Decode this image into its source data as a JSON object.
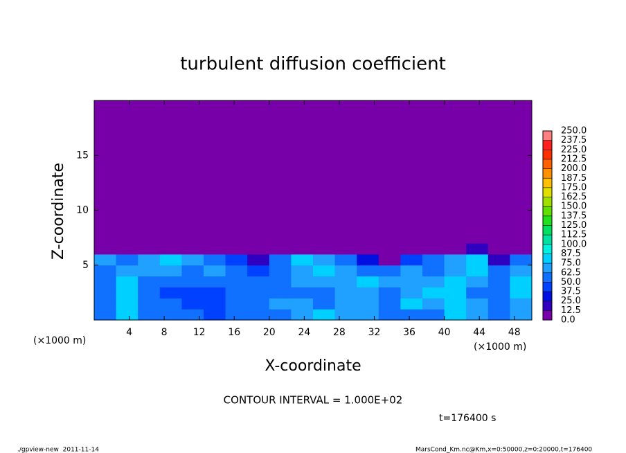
{
  "chart_data": {
    "type": "heatmap",
    "title": "turbulent diffusion coefficient",
    "xlabel": "X-coordinate",
    "ylabel": "Z-coordinate",
    "x_unit": "(×1000 m)",
    "y_unit": "(×1000 m)",
    "contour_note": "CONTOUR INTERVAL = 1.000E+02",
    "time_note": "t=176400 s",
    "footer_left": "./gpview-new  2011-11-14",
    "footer_right": "MarsCond_Km.nc@Km,x=0:50000,z=0:20000,t=176400",
    "xlim": [
      0,
      50
    ],
    "ylim": [
      0,
      20
    ],
    "xticks": [
      4,
      8,
      12,
      16,
      20,
      24,
      28,
      32,
      36,
      40,
      44,
      48
    ],
    "yticks": [
      5,
      10,
      15
    ],
    "x_edges": [
      0,
      2.5,
      5,
      7.5,
      10,
      12.5,
      15,
      17.5,
      20,
      22.5,
      25,
      27.5,
      30,
      32.5,
      35,
      37.5,
      40,
      42.5,
      45,
      47.5,
      50
    ],
    "y_edges": [
      0,
      1,
      2,
      3,
      4,
      5,
      6,
      7,
      20
    ],
    "z": [
      [
        60,
        75,
        55,
        50,
        60,
        45,
        50,
        55,
        60,
        70,
        75,
        70,
        65,
        60,
        55,
        60,
        75,
        70,
        55,
        65
      ],
      [
        55,
        80,
        60,
        50,
        45,
        40,
        55,
        60,
        70,
        65,
        60,
        65,
        70,
        60,
        75,
        70,
        80,
        65,
        50,
        70
      ],
      [
        50,
        85,
        55,
        45,
        40,
        45,
        55,
        50,
        60,
        55,
        60,
        70,
        65,
        60,
        70,
        75,
        85,
        60,
        55,
        75
      ],
      [
        55,
        80,
        60,
        55,
        50,
        55,
        60,
        50,
        55,
        65,
        70,
        65,
        75,
        70,
        65,
        70,
        75,
        65,
        60,
        80
      ],
      [
        60,
        70,
        65,
        70,
        60,
        65,
        55,
        45,
        60,
        70,
        75,
        70,
        60,
        55,
        65,
        60,
        70,
        75,
        55,
        70
      ],
      [
        70,
        60,
        70,
        75,
        70,
        60,
        45,
        20,
        60,
        75,
        70,
        55,
        30,
        10,
        40,
        55,
        70,
        75,
        20,
        60
      ],
      [
        0,
        0,
        0,
        0,
        0,
        0,
        0,
        0,
        0,
        0,
        0,
        0,
        0,
        0,
        0,
        0,
        5,
        20,
        0,
        0
      ],
      [
        0,
        0,
        0,
        0,
        0,
        0,
        0,
        0,
        0,
        0,
        0,
        0,
        0,
        0,
        0,
        0,
        0,
        0,
        0,
        0
      ]
    ],
    "levels": [
      {
        "value": 0,
        "label": "0.0"
      },
      {
        "value": 12.5,
        "label": "12.5"
      },
      {
        "value": 25,
        "label": "25.0"
      },
      {
        "value": 37.5,
        "label": "37.5"
      },
      {
        "value": 50,
        "label": "50.0"
      },
      {
        "value": 62.5,
        "label": "62.5"
      },
      {
        "value": 75,
        "label": "75.0"
      },
      {
        "value": 87.5,
        "label": "87.5"
      },
      {
        "value": 100,
        "label": "100.0"
      },
      {
        "value": 112.5,
        "label": "112.5"
      },
      {
        "value": 125,
        "label": "125.0"
      },
      {
        "value": 137.5,
        "label": "137.5"
      },
      {
        "value": 150,
        "label": "150.0"
      },
      {
        "value": 162.5,
        "label": "162.5"
      },
      {
        "value": 175,
        "label": "175.0"
      },
      {
        "value": 187.5,
        "label": "187.5"
      },
      {
        "value": 200,
        "label": "200.0"
      },
      {
        "value": 212.5,
        "label": "212.5"
      },
      {
        "value": 225,
        "label": "225.0"
      },
      {
        "value": 237.5,
        "label": "237.5"
      },
      {
        "value": 250,
        "label": "250.0"
      }
    ],
    "colors": [
      "#7800a8",
      "#3000c0",
      "#0010e0",
      "#0040ff",
      "#1070ff",
      "#20a0ff",
      "#00d0ff",
      "#00f0e0",
      "#00e0a0",
      "#00e060",
      "#20e020",
      "#60e000",
      "#a0e000",
      "#e0e000",
      "#ffc000",
      "#ff9000",
      "#ff6000",
      "#ff3000",
      "#ff2020",
      "#ff8080"
    ]
  }
}
